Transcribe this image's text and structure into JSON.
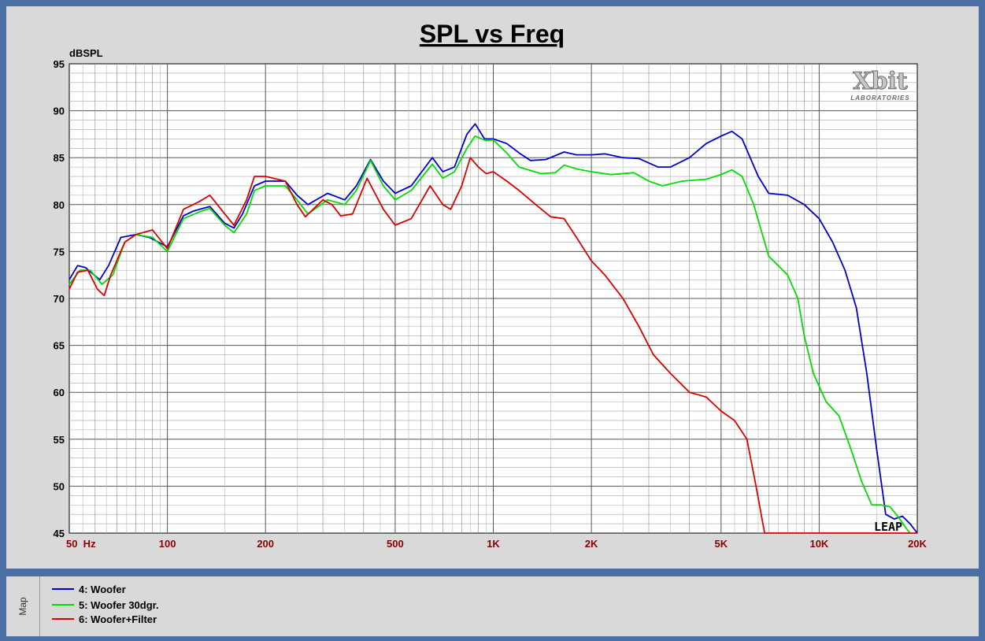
{
  "chart_data": {
    "type": "line",
    "title": "SPL vs Freq",
    "ylabel": "dBSPL",
    "xscale": "log",
    "xlim": [
      50,
      20000
    ],
    "ylim": [
      45,
      95
    ],
    "grid": true,
    "legend_placement": "bottom-left",
    "y_ticks": [
      95,
      90,
      85,
      80,
      75,
      70,
      65,
      60,
      55,
      50,
      45
    ],
    "x_tick_labels": [
      {
        "value": 50,
        "label": "50  Hz"
      },
      {
        "value": 100,
        "label": "100"
      },
      {
        "value": 200,
        "label": "200"
      },
      {
        "value": 500,
        "label": "500"
      },
      {
        "value": 1000,
        "label": "1K"
      },
      {
        "value": 2000,
        "label": "2K"
      },
      {
        "value": 5000,
        "label": "5K"
      },
      {
        "value": 10000,
        "label": "10K"
      },
      {
        "value": 20000,
        "label": "20K"
      }
    ],
    "series": [
      {
        "name": "4: Woofer",
        "color": "#0000cc",
        "points": [
          [
            50,
            72.0
          ],
          [
            53,
            73.5
          ],
          [
            56,
            73.3
          ],
          [
            62,
            72.0
          ],
          [
            66,
            73.5
          ],
          [
            72,
            76.5
          ],
          [
            80,
            76.8
          ],
          [
            88,
            76.5
          ],
          [
            100,
            75.5
          ],
          [
            112,
            78.8
          ],
          [
            120,
            79.3
          ],
          [
            135,
            79.8
          ],
          [
            150,
            78.0
          ],
          [
            160,
            77.5
          ],
          [
            170,
            79.0
          ],
          [
            185,
            82.0
          ],
          [
            200,
            82.5
          ],
          [
            230,
            82.5
          ],
          [
            250,
            81.0
          ],
          [
            270,
            80.0
          ],
          [
            310,
            81.2
          ],
          [
            350,
            80.5
          ],
          [
            380,
            82.0
          ],
          [
            420,
            84.8
          ],
          [
            460,
            82.5
          ],
          [
            500,
            81.2
          ],
          [
            560,
            82.0
          ],
          [
            650,
            85.0
          ],
          [
            700,
            83.5
          ],
          [
            760,
            84.0
          ],
          [
            830,
            87.5
          ],
          [
            880,
            88.6
          ],
          [
            940,
            87.0
          ],
          [
            1000,
            87.0
          ],
          [
            1100,
            86.5
          ],
          [
            1200,
            85.5
          ],
          [
            1300,
            84.7
          ],
          [
            1450,
            84.8
          ],
          [
            1650,
            85.6
          ],
          [
            1800,
            85.3
          ],
          [
            2000,
            85.3
          ],
          [
            2200,
            85.4
          ],
          [
            2500,
            85.0
          ],
          [
            2800,
            84.9
          ],
          [
            3200,
            84.0
          ],
          [
            3500,
            84.0
          ],
          [
            4000,
            85.0
          ],
          [
            4500,
            86.5
          ],
          [
            5000,
            87.3
          ],
          [
            5400,
            87.8
          ],
          [
            5800,
            87.0
          ],
          [
            6500,
            83.0
          ],
          [
            7000,
            81.2
          ],
          [
            8000,
            81.0
          ],
          [
            9000,
            80.0
          ],
          [
            10000,
            78.5
          ],
          [
            11000,
            76.0
          ],
          [
            12000,
            73.0
          ],
          [
            13000,
            69.0
          ],
          [
            14000,
            62.0
          ],
          [
            15000,
            54.0
          ],
          [
            16000,
            47.0
          ],
          [
            17000,
            46.5
          ],
          [
            18000,
            46.8
          ],
          [
            19000,
            46.0
          ],
          [
            20000,
            45.0
          ]
        ]
      },
      {
        "name": "5: Woofer 30dgr.",
        "color": "#00dd00",
        "points": [
          [
            50,
            71.5
          ],
          [
            54,
            73.0
          ],
          [
            58,
            73.0
          ],
          [
            63,
            71.5
          ],
          [
            68,
            72.5
          ],
          [
            74,
            76.0
          ],
          [
            80,
            76.8
          ],
          [
            90,
            76.5
          ],
          [
            100,
            75.0
          ],
          [
            112,
            78.5
          ],
          [
            125,
            79.2
          ],
          [
            135,
            79.6
          ],
          [
            150,
            77.8
          ],
          [
            160,
            77.0
          ],
          [
            175,
            79.0
          ],
          [
            185,
            81.5
          ],
          [
            200,
            82.0
          ],
          [
            230,
            82.0
          ],
          [
            250,
            80.5
          ],
          [
            270,
            79.0
          ],
          [
            310,
            80.5
          ],
          [
            350,
            80.0
          ],
          [
            380,
            81.5
          ],
          [
            420,
            84.7
          ],
          [
            460,
            82.0
          ],
          [
            500,
            80.5
          ],
          [
            560,
            81.5
          ],
          [
            650,
            84.3
          ],
          [
            700,
            82.8
          ],
          [
            760,
            83.5
          ],
          [
            830,
            86.0
          ],
          [
            880,
            87.3
          ],
          [
            950,
            86.8
          ],
          [
            1000,
            86.9
          ],
          [
            1100,
            85.5
          ],
          [
            1200,
            84.0
          ],
          [
            1400,
            83.3
          ],
          [
            1550,
            83.4
          ],
          [
            1650,
            84.2
          ],
          [
            1800,
            83.8
          ],
          [
            2000,
            83.5
          ],
          [
            2300,
            83.2
          ],
          [
            2700,
            83.4
          ],
          [
            3000,
            82.5
          ],
          [
            3300,
            82.0
          ],
          [
            3800,
            82.5
          ],
          [
            4500,
            82.7
          ],
          [
            5000,
            83.2
          ],
          [
            5400,
            83.7
          ],
          [
            5800,
            83.0
          ],
          [
            6300,
            80.0
          ],
          [
            7000,
            74.5
          ],
          [
            8000,
            72.5
          ],
          [
            8600,
            70.0
          ],
          [
            9000,
            66.0
          ],
          [
            9600,
            62.0
          ],
          [
            10500,
            59.0
          ],
          [
            11500,
            57.5
          ],
          [
            12500,
            54.0
          ],
          [
            13500,
            50.5
          ],
          [
            14500,
            48.0
          ],
          [
            15500,
            48.0
          ],
          [
            16500,
            47.8
          ],
          [
            17500,
            46.7
          ],
          [
            18500,
            45.5
          ],
          [
            19000,
            45.0
          ]
        ]
      },
      {
        "name": "6: Woofer+Filter",
        "color": "#dd0000",
        "points": [
          [
            50,
            71.0
          ],
          [
            53,
            72.8
          ],
          [
            57,
            73.0
          ],
          [
            61,
            71.0
          ],
          [
            64,
            70.3
          ],
          [
            67,
            72.5
          ],
          [
            74,
            76.0
          ],
          [
            80,
            76.8
          ],
          [
            90,
            77.3
          ],
          [
            100,
            75.3
          ],
          [
            112,
            79.5
          ],
          [
            125,
            80.3
          ],
          [
            135,
            81.0
          ],
          [
            150,
            79.0
          ],
          [
            160,
            77.8
          ],
          [
            175,
            80.5
          ],
          [
            185,
            83.0
          ],
          [
            200,
            83.0
          ],
          [
            230,
            82.5
          ],
          [
            250,
            80.0
          ],
          [
            265,
            78.7
          ],
          [
            300,
            80.5
          ],
          [
            320,
            80.0
          ],
          [
            340,
            78.8
          ],
          [
            370,
            79.0
          ],
          [
            410,
            82.8
          ],
          [
            460,
            79.5
          ],
          [
            500,
            77.8
          ],
          [
            560,
            78.5
          ],
          [
            640,
            82.0
          ],
          [
            700,
            80.0
          ],
          [
            740,
            79.5
          ],
          [
            800,
            82.0
          ],
          [
            850,
            85.0
          ],
          [
            900,
            84.0
          ],
          [
            950,
            83.3
          ],
          [
            1000,
            83.5
          ],
          [
            1100,
            82.5
          ],
          [
            1200,
            81.5
          ],
          [
            1350,
            80.0
          ],
          [
            1500,
            78.7
          ],
          [
            1650,
            78.5
          ],
          [
            1800,
            76.5
          ],
          [
            2000,
            74.0
          ],
          [
            2200,
            72.5
          ],
          [
            2500,
            70.0
          ],
          [
            2800,
            67.0
          ],
          [
            3100,
            64.0
          ],
          [
            3500,
            62.0
          ],
          [
            4000,
            60.0
          ],
          [
            4500,
            59.5
          ],
          [
            5000,
            58.0
          ],
          [
            5500,
            57.0
          ],
          [
            6000,
            55.0
          ],
          [
            6400,
            50.0
          ],
          [
            6800,
            45.0
          ],
          [
            20000,
            45.0
          ]
        ]
      }
    ]
  },
  "side_tab": {
    "label": "Map"
  }
}
